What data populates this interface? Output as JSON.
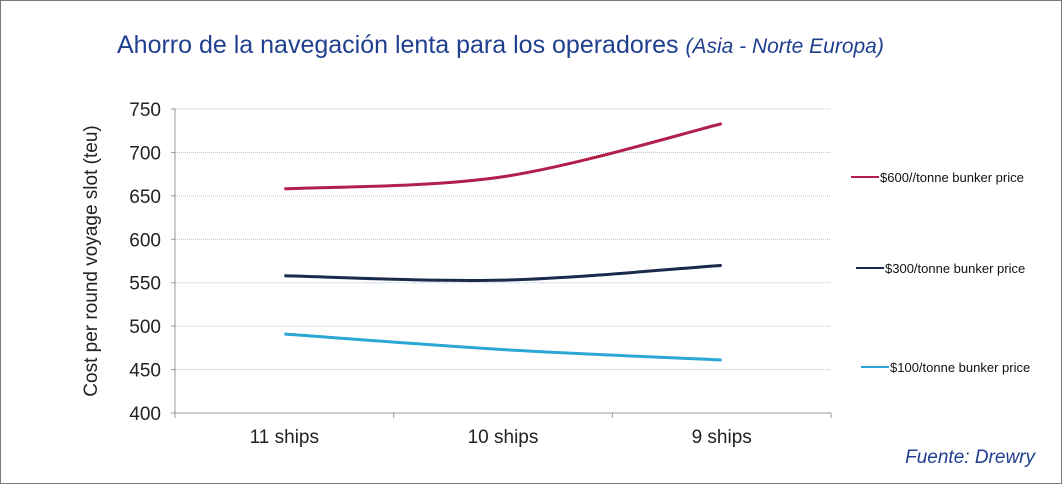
{
  "chart_data": {
    "type": "line",
    "title": "Ahorro de la navegación lenta para los operadores",
    "subtitle": "(Asia - Norte Europa)",
    "xlabel": "",
    "ylabel": "Cost per round voyage slot (teu)",
    "categories": [
      "11 ships",
      "10 ships",
      "9 ships"
    ],
    "ylim": [
      400,
      750
    ],
    "yticks": [
      400,
      450,
      500,
      550,
      600,
      650,
      700,
      750
    ],
    "grid": true,
    "legend_position": "right",
    "series": [
      {
        "name": "$600//tonne bunker price",
        "color": "#b0204a",
        "values": [
          658,
          672,
          733
        ]
      },
      {
        "name": "$300/tonne bunker price",
        "color": "#1a2a4a",
        "values": [
          558,
          553,
          570
        ]
      },
      {
        "name": "$100/tonne bunker price",
        "color": "#2aa7d4",
        "values": [
          491,
          473,
          461
        ]
      }
    ],
    "source": "Fuente: Drewry"
  }
}
